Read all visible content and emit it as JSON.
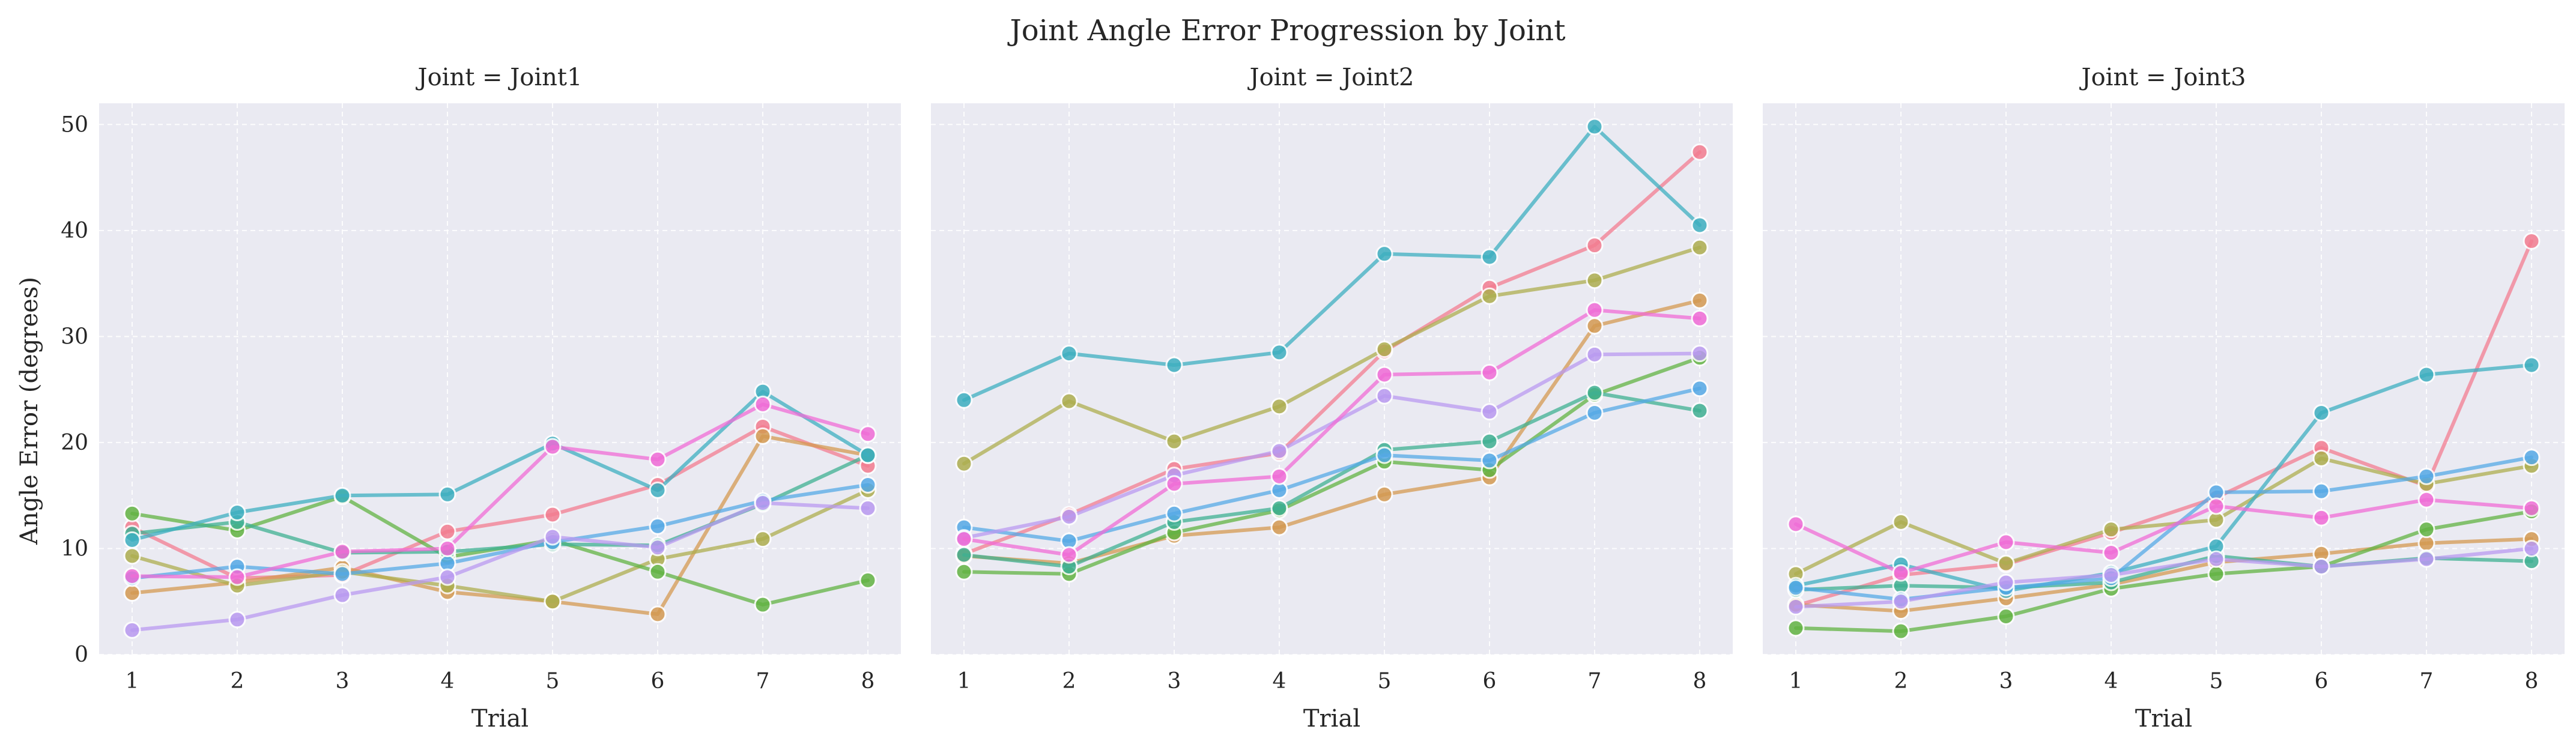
{
  "chart_data": {
    "type": "line",
    "title": "Joint Angle Error Progression by Joint",
    "xlabel": "Trial",
    "ylabel": "Angle Error (degrees)",
    "x": [
      1,
      2,
      3,
      4,
      5,
      6,
      7,
      8
    ],
    "xticks": [
      "1",
      "2",
      "3",
      "4",
      "5",
      "6",
      "7",
      "8"
    ],
    "ylim": [
      0,
      52
    ],
    "yticks": [
      "0",
      "10",
      "20",
      "30",
      "40",
      "50"
    ],
    "grid": true,
    "colors": [
      "#f37c90",
      "#d49a52",
      "#adae4f",
      "#62b343",
      "#3fb092",
      "#3eafc0",
      "#55a9e6",
      "#b99af0",
      "#f06cd6"
    ],
    "panels": [
      {
        "title": "Joint = Joint1",
        "series": [
          {
            "color_index": 0,
            "values": [
              12.0,
              7.2,
              7.5,
              11.6,
              13.2,
              16.0,
              21.5,
              17.8
            ]
          },
          {
            "color_index": 1,
            "values": [
              5.8,
              6.8,
              8.2,
              5.9,
              5.0,
              3.8,
              20.6,
              18.8
            ]
          },
          {
            "color_index": 2,
            "values": [
              9.3,
              6.5,
              7.8,
              6.5,
              5.0,
              9.0,
              10.9,
              15.5
            ]
          },
          {
            "color_index": 3,
            "values": [
              13.3,
              11.7,
              14.9,
              9.2,
              10.8,
              7.8,
              4.7,
              7.0
            ]
          },
          {
            "color_index": 4,
            "values": [
              11.4,
              12.5,
              9.6,
              9.7,
              10.4,
              10.3,
              14.2,
              18.8
            ]
          },
          {
            "color_index": 5,
            "values": [
              10.8,
              13.4,
              15.0,
              15.1,
              19.9,
              15.5,
              24.8,
              18.8
            ]
          },
          {
            "color_index": 6,
            "values": [
              7.2,
              8.3,
              7.6,
              8.6,
              10.6,
              12.1,
              14.5,
              16.0
            ]
          },
          {
            "color_index": 7,
            "values": [
              2.3,
              3.3,
              5.6,
              7.3,
              11.1,
              10.1,
              14.3,
              13.8
            ]
          },
          {
            "color_index": 8,
            "values": [
              7.4,
              7.3,
              9.7,
              10.0,
              19.6,
              18.4,
              23.6,
              20.8
            ]
          }
        ]
      },
      {
        "title": "Joint = Joint2",
        "series": [
          {
            "color_index": 0,
            "values": [
              9.5,
              13.2,
              17.5,
              19.0,
              28.6,
              34.6,
              38.6,
              47.4
            ]
          },
          {
            "color_index": 1,
            "values": [
              9.3,
              8.6,
              11.2,
              12.0,
              15.1,
              16.7,
              31.0,
              33.4
            ]
          },
          {
            "color_index": 2,
            "values": [
              18.0,
              23.9,
              20.1,
              23.4,
              28.8,
              33.8,
              35.3,
              38.4
            ]
          },
          {
            "color_index": 3,
            "values": [
              7.8,
              7.6,
              11.5,
              13.6,
              18.2,
              17.4,
              24.5,
              28.0
            ]
          },
          {
            "color_index": 4,
            "values": [
              9.4,
              8.3,
              12.5,
              13.8,
              19.3,
              20.1,
              24.7,
              23.0
            ]
          },
          {
            "color_index": 5,
            "values": [
              24.0,
              28.4,
              27.3,
              28.5,
              37.8,
              37.5,
              49.8,
              40.5
            ]
          },
          {
            "color_index": 6,
            "values": [
              12.0,
              10.7,
              13.3,
              15.5,
              18.8,
              18.3,
              22.8,
              25.1
            ]
          },
          {
            "color_index": 7,
            "values": [
              11.0,
              13.0,
              16.9,
              19.2,
              24.4,
              22.9,
              28.3,
              28.4
            ]
          },
          {
            "color_index": 8,
            "values": [
              10.9,
              9.4,
              16.1,
              16.8,
              26.4,
              26.6,
              32.5,
              31.7
            ]
          }
        ]
      },
      {
        "title": "Joint = Joint3",
        "series": [
          {
            "color_index": 0,
            "values": [
              4.6,
              7.5,
              8.5,
              11.5,
              14.8,
              19.5,
              15.9,
              39.0
            ]
          },
          {
            "color_index": 1,
            "values": [
              4.7,
              4.1,
              5.3,
              6.6,
              8.7,
              9.5,
              10.5,
              10.9
            ]
          },
          {
            "color_index": 2,
            "values": [
              7.6,
              12.5,
              8.6,
              11.8,
              12.7,
              18.5,
              16.1,
              17.8
            ]
          },
          {
            "color_index": 3,
            "values": [
              2.5,
              2.2,
              3.6,
              6.2,
              7.6,
              8.3,
              11.8,
              13.5
            ]
          },
          {
            "color_index": 4,
            "values": [
              6.1,
              6.5,
              6.3,
              6.8,
              9.3,
              8.3,
              9.1,
              8.8
            ]
          },
          {
            "color_index": 5,
            "values": [
              6.5,
              8.5,
              6.0,
              7.7,
              10.2,
              22.8,
              26.4,
              27.3
            ]
          },
          {
            "color_index": 6,
            "values": [
              6.3,
              5.2,
              6.3,
              7.2,
              15.3,
              15.4,
              16.8,
              18.6
            ]
          },
          {
            "color_index": 7,
            "values": [
              4.5,
              5.0,
              6.8,
              7.5,
              9.0,
              8.3,
              9.0,
              10.0
            ]
          },
          {
            "color_index": 8,
            "values": [
              12.3,
              7.7,
              10.6,
              9.6,
              14.0,
              12.9,
              14.6,
              13.8
            ]
          }
        ]
      }
    ]
  }
}
